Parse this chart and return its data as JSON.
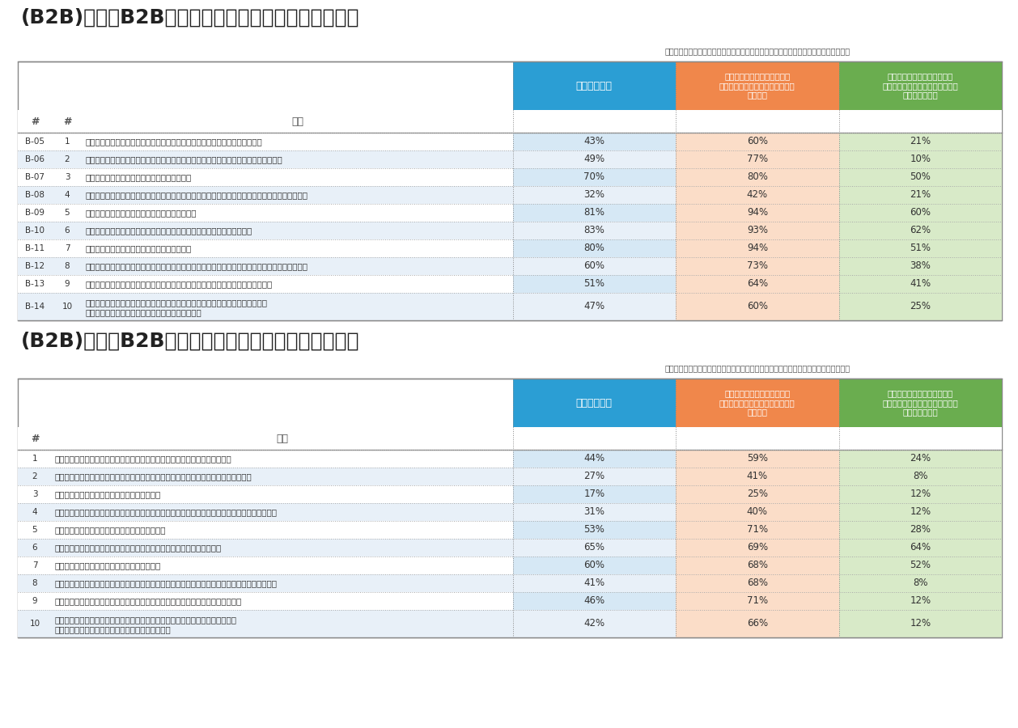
{
  "title1": "(B2B)米国のB2B・コンテンツマーケティングの概況",
  "title2": "(B2B)日本のB2B・コンテンツマーケティングの概況",
  "subtitle": "数値は各質問に、「非常にあてはまる」または「ある程度あてはまる」と回答した比率",
  "col_header1": "全ての回答者",
  "col_header2": "コンテンツマーケティングで\nビジネス上の成果を上げることに\n成功した",
  "col_header3": "コンテンツマーケティングで\nビジネス上の成果を上げることに\n成功しなかった",
  "col1_color": "#2B9ED4",
  "col2_color": "#F0874B",
  "col3_color": "#6AAD4F",
  "col1_light": "#D6E8F5",
  "col2_light": "#FBDDC8",
  "col3_light": "#D8EAC8",
  "row_even_left": "#FFFFFF",
  "row_odd_left": "#E8F0F8",
  "row_even_all": "#D6E8F5",
  "row_odd_all": "#E8F0F8",
  "row_even_suc": "#FBDDC8",
  "row_odd_suc": "#FBDDC8",
  "row_even_fai": "#D8EAC8",
  "row_odd_fai": "#D8EAC8",
  "bg_color": "#FFFFFF",
  "us_rows": [
    {
      "id": "B-05",
      "num": "1",
      "question": "コンテンツマーケティングの書面としての戦略設計図を作成して活用している",
      "all": "43%",
      "success": "60%",
      "fail": "21%"
    },
    {
      "id": "B-06",
      "num": "2",
      "question": "所属する組織のコンテンツマーケティングは洗練されているし、成熟していると感じる",
      "all": "49%",
      "success": "77%",
      "fail": "10%"
    },
    {
      "id": "B-07",
      "num": "3",
      "question": "「エディトリアルカレンダー」を活用している",
      "all": "70%",
      "success": "80%",
      "fail": "50%"
    },
    {
      "id": "B-08",
      "num": "4",
      "question": "オンライン上のコミュニティの構築に成功した（オウンドメディアを購読するメルマガ会員など）",
      "all": "32%",
      "success": "42%",
      "fail": "21%"
    },
    {
      "id": "B-09",
      "num": "5",
      "question": "コンテンツの成果を測るための指標をもっている",
      "all": "81%",
      "success": "94%",
      "fail": "60%"
    },
    {
      "id": "B-10",
      "num": "6",
      "question": "所属する組織は、コロナ禍がビジネスにもたらした変化に迅速に対応した",
      "all": "83%",
      "success": "93%",
      "fail": "62%"
    },
    {
      "id": "B-11",
      "num": "7",
      "question": "前問の対応や施策はビジネス上、効果的だった",
      "all": "80%",
      "success": "94%",
      "fail": "51%"
    },
    {
      "id": "B-12",
      "num": "8",
      "question": "メルマガ購読者や見込み客を育成するために、コンテンツマーケティングを有効に実施できている",
      "all": "60%",
      "success": "73%",
      "fail": "38%"
    },
    {
      "id": "B-13",
      "num": "9",
      "question": "案件創出や収益向上のために、コンテンツマーケティングを有効に実施できている",
      "all": "51%",
      "success": "64%",
      "fail": "41%"
    },
    {
      "id": "B-14",
      "num": "10",
      "question": "オーディエンス（中長期的に収益に貢献してくれるファン）を構築するために、\nコンテンツマーケティングを有効に実施できている",
      "all": "47%",
      "success": "60%",
      "fail": "25%"
    }
  ],
  "jp_rows": [
    {
      "num": "1",
      "question": "コンテンツマーケティングの書面としての戦略設計図を作成して活用している",
      "all": "44%",
      "success": "59%",
      "fail": "24%"
    },
    {
      "num": "2",
      "question": "所属する組織のコンテンツマーケティングは洗練されているし、成熟していると感じる",
      "all": "27%",
      "success": "41%",
      "fail": "8%"
    },
    {
      "num": "3",
      "question": "「エディトリアルカレンダー」を活用している",
      "all": "17%",
      "success": "25%",
      "fail": "12%"
    },
    {
      "num": "4",
      "question": "オンライン上のコミュニティの構築に成功した（オウンドメディアを購読するメルマガ会員など）",
      "all": "31%",
      "success": "40%",
      "fail": "12%"
    },
    {
      "num": "5",
      "question": "コンテンツの成果を測るための指標をもっている",
      "all": "53%",
      "success": "71%",
      "fail": "28%"
    },
    {
      "num": "6",
      "question": "所属する組織は、コロナ禍がビジネスにもたらした変化に迅速に対応した",
      "all": "65%",
      "success": "69%",
      "fail": "64%"
    },
    {
      "num": "7",
      "question": "前問の対応や施策はビジネス上、効果的だった",
      "all": "60%",
      "success": "68%",
      "fail": "52%"
    },
    {
      "num": "8",
      "question": "メルマガ購読者や見込み客を育成するために、コンテンツマーケティングを有効に実施できている",
      "all": "41%",
      "success": "68%",
      "fail": "8%"
    },
    {
      "num": "9",
      "question": "案件創出や収益向上のために、コンテンツマーケティングを有効に実施できている",
      "all": "46%",
      "success": "71%",
      "fail": "12%"
    },
    {
      "num": "10",
      "question": "オーディエンス（中長期的に収益に貢献してくれるファン）を構築するために、\nコンテンツマーケティングを有効に実施できている",
      "all": "42%",
      "success": "66%",
      "fail": "12%"
    }
  ]
}
